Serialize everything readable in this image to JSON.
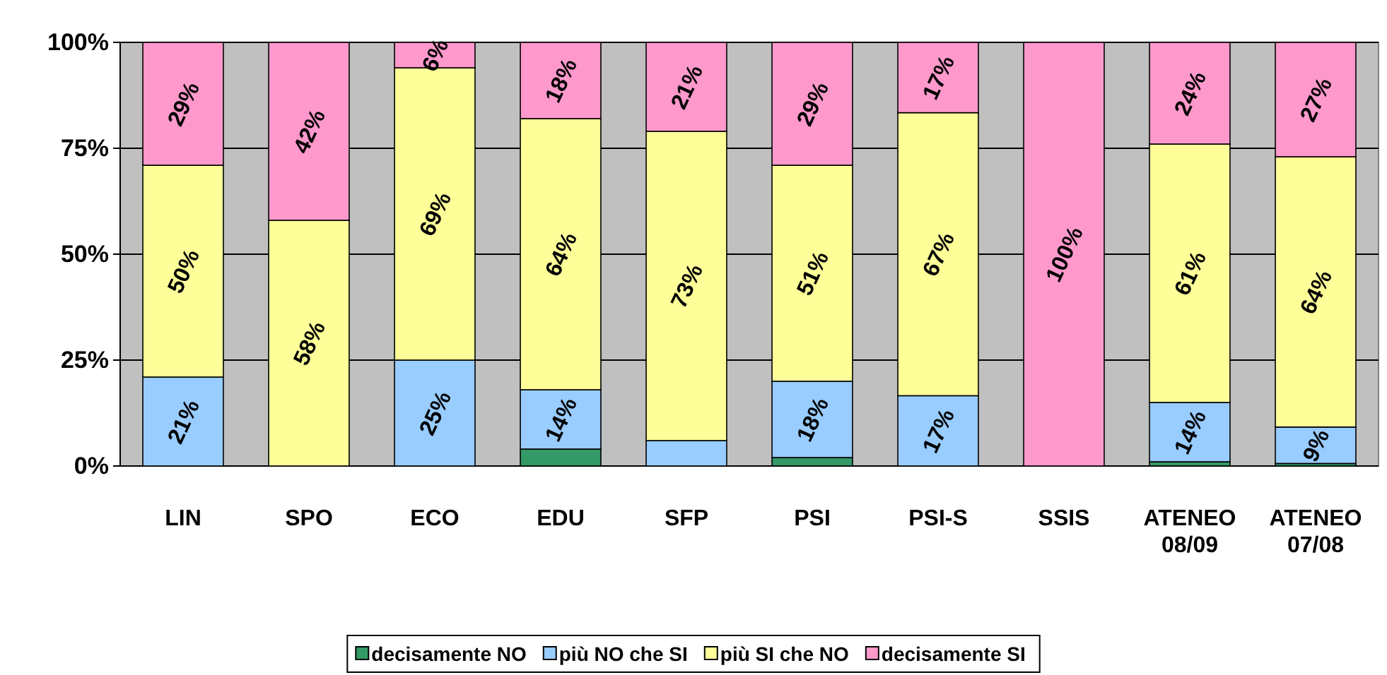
{
  "chart_data": {
    "type": "bar",
    "stacked": true,
    "categories": [
      "LIN",
      "SPO",
      "ECO",
      "EDU",
      "SFP",
      "PSI",
      "PSI-S",
      "SSIS",
      "ATENEO 08/09",
      "ATENEO 07/08"
    ],
    "series": [
      {
        "name": "decisamente NO",
        "color": "#339966",
        "values": [
          0,
          0,
          0,
          4,
          0,
          2,
          0,
          0,
          1,
          0.6
        ],
        "value_labels": [
          null,
          null,
          null,
          null,
          null,
          null,
          null,
          null,
          null,
          null
        ]
      },
      {
        "name": "più NO che SI",
        "color": "#99ccff",
        "values": [
          21,
          0,
          25,
          14,
          6,
          18,
          16.6,
          0,
          14,
          8.6
        ],
        "value_labels": [
          "21%",
          null,
          "25%",
          "14%",
          null,
          "18%",
          "17%",
          null,
          "14%",
          "9%"
        ]
      },
      {
        "name": "più SI che NO",
        "color": "#ffff99",
        "values": [
          50,
          58,
          69,
          64,
          73,
          51,
          66.8,
          0,
          61,
          63.8
        ],
        "value_labels": [
          "50%",
          "58%",
          "69%",
          "64%",
          "73%",
          "51%",
          "67%",
          null,
          "61%",
          "64%"
        ]
      },
      {
        "name": "decisamente SI",
        "color": "#ff99cc",
        "values": [
          29,
          42,
          6,
          18,
          21,
          29,
          16.6,
          100,
          24,
          27
        ],
        "value_labels": [
          "29%",
          "42%",
          "6%",
          "18%",
          "21%",
          "29%",
          "17%",
          "100%",
          "24%",
          "27%"
        ]
      }
    ],
    "ylim": [
      0,
      100
    ],
    "yticks": [
      {
        "value": 0,
        "label": "0%"
      },
      {
        "value": 25,
        "label": "25%"
      },
      {
        "value": 50,
        "label": "50%"
      },
      {
        "value": 75,
        "label": "75%"
      },
      {
        "value": 100,
        "label": "100%"
      }
    ],
    "grid": "y",
    "legend": "bottom"
  }
}
